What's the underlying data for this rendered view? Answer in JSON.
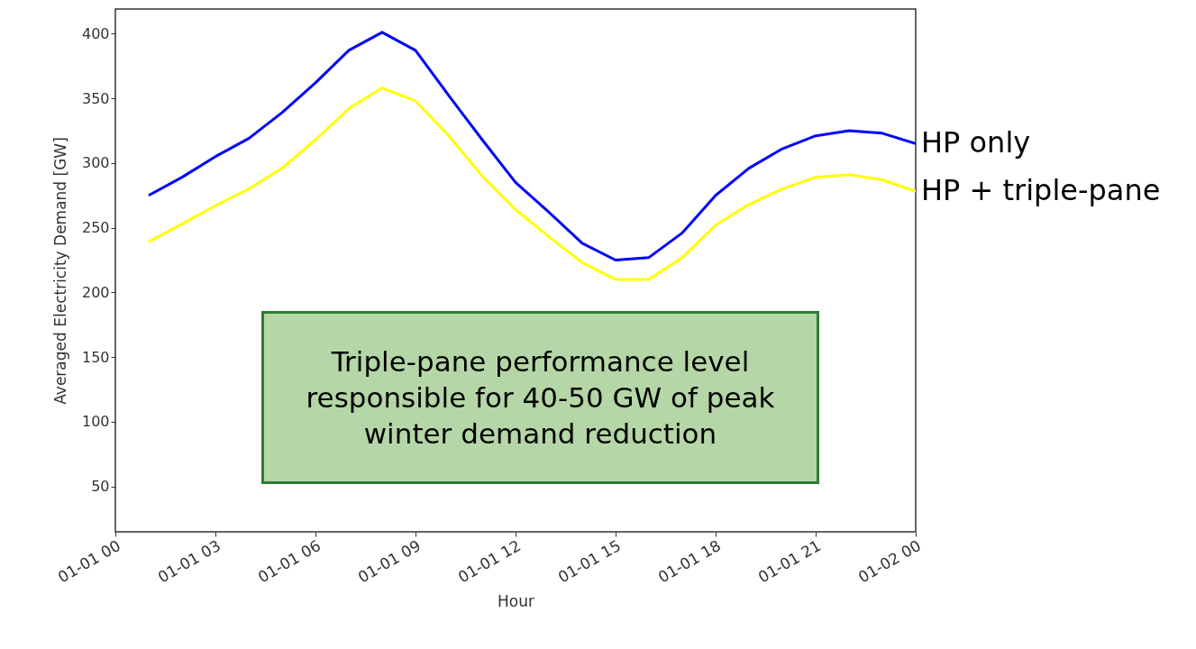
{
  "chart_data": {
    "type": "line",
    "xlabel": "Hour",
    "ylabel": "Averaged Electricity Demand [GW]",
    "categories": [
      "01-01 00",
      null,
      null,
      "01-01 03",
      null,
      null,
      "01-01 06",
      null,
      null,
      "01-01 09",
      null,
      null,
      "01-01 12",
      null,
      null,
      "01-01 15",
      null,
      null,
      "01-01 18",
      null,
      null,
      "01-01 21",
      null,
      null,
      "01-02 00"
    ],
    "ylim": [
      15,
      419
    ],
    "yticks": [
      50,
      100,
      150,
      200,
      250,
      300,
      350,
      400
    ],
    "series": [
      {
        "name": "HP only",
        "color": "#0000ff",
        "values": [
          null,
          275,
          289,
          305,
          319,
          339,
          362,
          387,
          401,
          387,
          352,
          318,
          285,
          262,
          238,
          225,
          227,
          246,
          275,
          296,
          311,
          321,
          325,
          323,
          315
        ]
      },
      {
        "name": "HP + triple-pane",
        "color": "#ffff00",
        "values": [
          null,
          239,
          253,
          267,
          280,
          296,
          318,
          342,
          358,
          348,
          321,
          290,
          264,
          243,
          223,
          210,
          210,
          227,
          252,
          268,
          280,
          289,
          291,
          287,
          278
        ]
      }
    ],
    "annotations": [
      "Triple-pane performance level responsible for 40-50 GW of peak winter demand reduction"
    ]
  }
}
